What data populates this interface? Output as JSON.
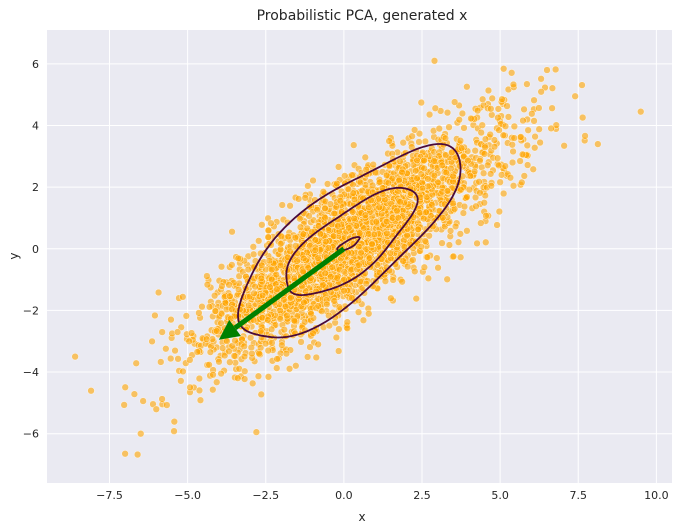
{
  "chart_data": {
    "type": "scatter",
    "title": "Probabilistic PCA, generated x",
    "xlabel": "x",
    "ylabel": "y",
    "xlim": [
      -9.5,
      10.5
    ],
    "ylim": [
      -7.6,
      7.1
    ],
    "x_ticks": [
      -7.5,
      -5.0,
      -2.5,
      0.0,
      2.5,
      5.0,
      7.5,
      10.0
    ],
    "x_tick_labels": [
      "−7.5",
      "−5.0",
      "−2.5",
      "0.0",
      "2.5",
      "5.0",
      "7.5",
      "10.0"
    ],
    "y_ticks": [
      -6,
      -4,
      -2,
      0,
      2,
      4,
      6
    ],
    "y_tick_labels": [
      "−6",
      "−4",
      "−2",
      "0",
      "2",
      "4",
      "6"
    ],
    "grid": true,
    "background_color": "#eaeaf2",
    "point_color": "#ffa500",
    "scatter": {
      "n_points": 3000,
      "mean": [
        0.2,
        0.2
      ],
      "cov": [
        [
          5.8,
          3.75
        ],
        [
          3.75,
          3.45
        ]
      ],
      "seed": 7
    },
    "outliers": [
      [
        -8.6,
        -3.5
      ],
      [
        9.5,
        4.45
      ],
      [
        -7.0,
        -6.65
      ],
      [
        2.9,
        6.1
      ],
      [
        -2.8,
        -5.95
      ],
      [
        6.5,
        5.8
      ],
      [
        -6.5,
        -6.0
      ],
      [
        7.4,
        4.95
      ]
    ],
    "contours": {
      "color": "#4a0a3a",
      "levels": [
        {
          "cx": 0.15,
          "cy": 0.15,
          "a": 0.4,
          "b": 0.12,
          "angle_deg": 30
        },
        {
          "cx": 0.2,
          "cy": 0.2,
          "a": 2.55,
          "b": 0.95,
          "angle_deg": 38
        },
        {
          "cx": 0.1,
          "cy": 0.2,
          "a": 4.45,
          "b": 1.6,
          "angle_deg": 40
        }
      ]
    },
    "arrow": {
      "color": "#008000",
      "from": [
        0.0,
        0.0
      ],
      "to": [
        -4.0,
        -2.95
      ]
    }
  }
}
